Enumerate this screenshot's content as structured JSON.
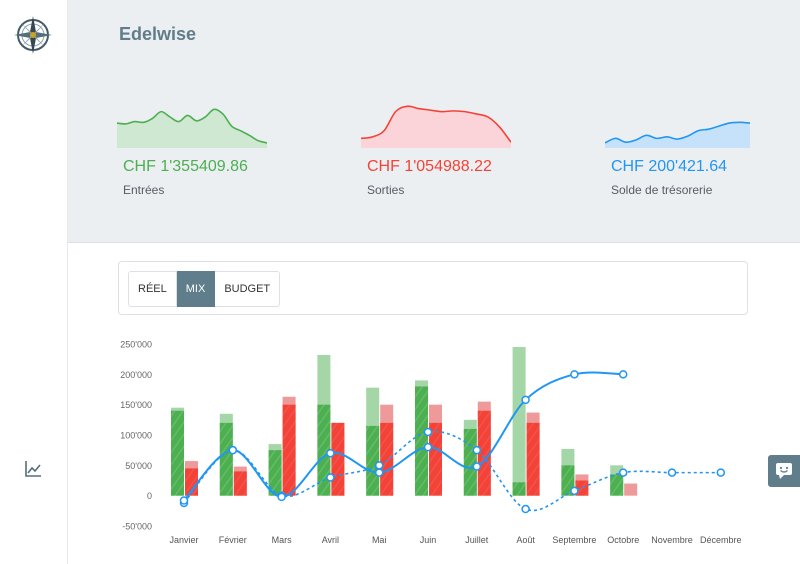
{
  "app": {
    "title": "Edelwise"
  },
  "sidebar": {
    "logo_icon": "compass-rose-icon",
    "nav": [
      {
        "name": "chart",
        "icon": "line-chart-icon"
      }
    ]
  },
  "kpis": [
    {
      "value": "CHF 1'355409.86",
      "label": "Entrées",
      "color": "#4caf50",
      "fill": "#c8e6c9",
      "spark": [
        30,
        29,
        32,
        31,
        36,
        45,
        38,
        32,
        40,
        33,
        38,
        48,
        42,
        26,
        20,
        14,
        7,
        4
      ]
    },
    {
      "value": "CHF 1'054988.22",
      "label": "Sorties",
      "color": "#f44336",
      "fill": "#ffcdd2",
      "spark": [
        10,
        12,
        20,
        45,
        52,
        49,
        47,
        45,
        46,
        45,
        42,
        38,
        25,
        5
      ]
    },
    {
      "value": "CHF 200'421.64",
      "label": "Solde de trésorerie",
      "color": "#2196f3",
      "fill": "#bbdefb",
      "spark": [
        4,
        10,
        5,
        8,
        14,
        10,
        12,
        9,
        13,
        20,
        22,
        26,
        30,
        31,
        30
      ]
    }
  ],
  "modes": {
    "options": [
      "RÉEL",
      "MIX",
      "BUDGET"
    ],
    "active": "MIX"
  },
  "chat": {
    "icon": "chat-smile-icon"
  },
  "chart_data": {
    "type": "bar",
    "categories": [
      "Janvier",
      "Février",
      "Mars",
      "Avril",
      "Mai",
      "Juin",
      "Juillet",
      "Août",
      "Septembre",
      "Octobre",
      "Novembre",
      "Décembre"
    ],
    "ylim": [
      -50000,
      250000
    ],
    "yticks": [
      -50000,
      0,
      50000,
      100000,
      150000,
      200000,
      250000
    ],
    "ytick_labels": [
      "-50'000",
      "0",
      "50'000",
      "100'000",
      "150'000",
      "200'000",
      "250'000"
    ],
    "series": [
      {
        "kind": "bar",
        "role": "inflow_actual",
        "color": "#4caf50",
        "values": [
          140000,
          120000,
          75000,
          150000,
          115000,
          180000,
          110000,
          22000,
          50000,
          35000,
          null,
          null
        ]
      },
      {
        "kind": "bar",
        "role": "inflow_budget",
        "color": "#a5d6a7",
        "values": [
          145000,
          135000,
          85000,
          232000,
          178000,
          190000,
          125000,
          245000,
          77000,
          50000,
          null,
          null
        ]
      },
      {
        "kind": "bar",
        "role": "outflow_actual",
        "color": "#f44336",
        "values": [
          45000,
          40000,
          150000,
          120000,
          120000,
          120000,
          140000,
          120000,
          25000,
          0,
          null,
          null
        ]
      },
      {
        "kind": "bar",
        "role": "outflow_budget",
        "color": "#ef9a9a",
        "values": [
          57000,
          48000,
          163000,
          120000,
          150000,
          150000,
          155000,
          137000,
          35000,
          20000,
          null,
          null
        ]
      },
      {
        "kind": "line",
        "role": "balance_actual",
        "color": "#2196f3",
        "values": [
          -8000,
          75000,
          -2000,
          70000,
          38000,
          80000,
          48000,
          158000,
          200000,
          200000,
          null,
          null
        ]
      },
      {
        "kind": "line",
        "role": "balance_budget",
        "color": "#2196f3",
        "dashed": true,
        "values": [
          -12000,
          75000,
          0,
          30000,
          50000,
          105000,
          75000,
          -22000,
          8000,
          38000,
          38000,
          38000
        ]
      }
    ]
  }
}
